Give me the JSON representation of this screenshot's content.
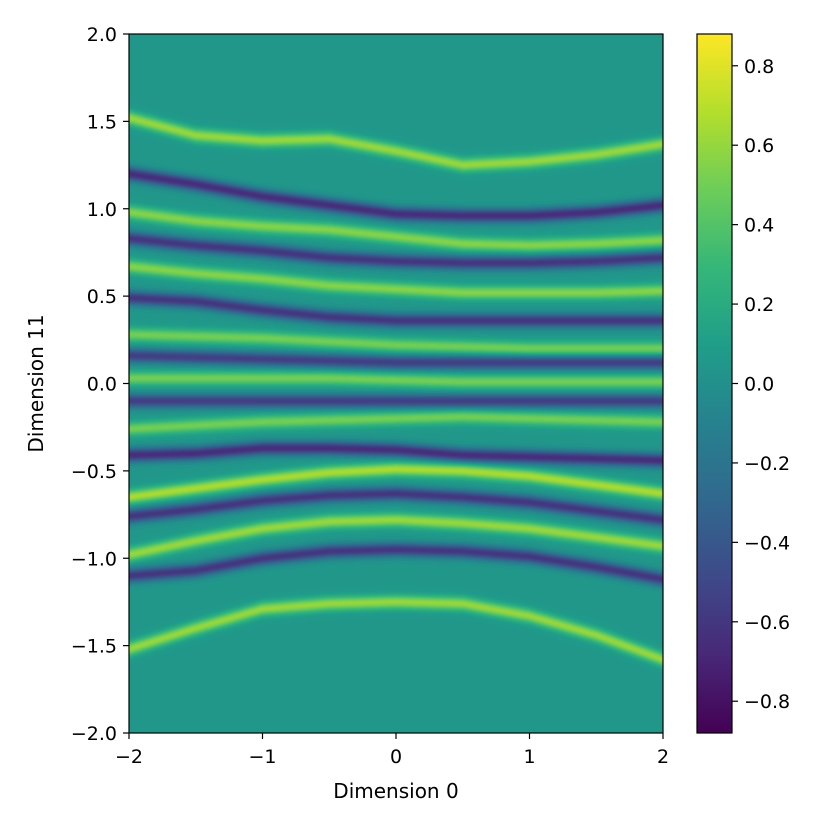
{
  "chart_data": {
    "type": "heatmap",
    "title": "",
    "xlabel": "Dimension 0",
    "ylabel": "Dimension 11",
    "xlim": [
      -2,
      2
    ],
    "ylim": [
      -2,
      2
    ],
    "xticks": [
      -2,
      -1,
      0,
      1,
      2
    ],
    "yticks": [
      -2.0,
      -1.5,
      -1.0,
      -0.5,
      0.0,
      0.5,
      1.0,
      1.5,
      2.0
    ],
    "xtick_labels": [
      "−2",
      "−1",
      "0",
      "1",
      "2"
    ],
    "ytick_labels": [
      "−2.0",
      "−1.5",
      "−1.0",
      "−0.5",
      "0.0",
      "0.5",
      "1.0",
      "1.5",
      "2.0"
    ],
    "colormap": "viridis",
    "background_value": 0.05,
    "colorbar": {
      "vmin": -0.88,
      "vmax": 0.88,
      "ticks": [
        -0.8,
        -0.6,
        -0.4,
        -0.2,
        0.0,
        0.2,
        0.4,
        0.6,
        0.8
      ],
      "tick_labels": [
        "−0.8",
        "−0.6",
        "−0.4",
        "−0.2",
        "0.0",
        "0.2",
        "0.4",
        "0.6",
        "0.8"
      ]
    },
    "bands": [
      {
        "sign": "positive",
        "amplitude": 0.55,
        "center_y": [
          [
            -2,
            1.52
          ],
          [
            -1.5,
            1.42
          ],
          [
            -1,
            1.39
          ],
          [
            -0.5,
            1.4
          ],
          [
            0,
            1.33
          ],
          [
            0.5,
            1.25
          ],
          [
            1,
            1.27
          ],
          [
            1.5,
            1.31
          ],
          [
            2,
            1.37
          ]
        ]
      },
      {
        "sign": "negative",
        "amplitude": 0.7,
        "center_y": [
          [
            -2,
            1.2
          ],
          [
            -1.5,
            1.14
          ],
          [
            -1,
            1.07
          ],
          [
            -0.5,
            1.02
          ],
          [
            0,
            0.97
          ],
          [
            0.5,
            0.96
          ],
          [
            1,
            0.96
          ],
          [
            1.5,
            0.98
          ],
          [
            2,
            1.02
          ]
        ]
      },
      {
        "sign": "positive",
        "amplitude": 0.5,
        "center_y": [
          [
            -2,
            0.98
          ],
          [
            -1.5,
            0.93
          ],
          [
            -1,
            0.9
          ],
          [
            -0.5,
            0.88
          ],
          [
            0,
            0.84
          ],
          [
            0.5,
            0.8
          ],
          [
            1,
            0.79
          ],
          [
            1.5,
            0.8
          ],
          [
            2,
            0.82
          ]
        ]
      },
      {
        "sign": "negative",
        "amplitude": 0.65,
        "center_y": [
          [
            -2,
            0.83
          ],
          [
            -1.5,
            0.79
          ],
          [
            -1,
            0.76
          ],
          [
            -0.5,
            0.72
          ],
          [
            0,
            0.7
          ],
          [
            0.5,
            0.69
          ],
          [
            1,
            0.69
          ],
          [
            1.5,
            0.7
          ],
          [
            2,
            0.72
          ]
        ]
      },
      {
        "sign": "positive",
        "amplitude": 0.5,
        "center_y": [
          [
            -2,
            0.67
          ],
          [
            -1.5,
            0.63
          ],
          [
            -1,
            0.6
          ],
          [
            -0.5,
            0.56
          ],
          [
            0,
            0.54
          ],
          [
            0.5,
            0.52
          ],
          [
            1,
            0.52
          ],
          [
            1.5,
            0.52
          ],
          [
            2,
            0.53
          ]
        ]
      },
      {
        "sign": "negative",
        "amplitude": 0.65,
        "center_y": [
          [
            -2,
            0.49
          ],
          [
            -1.5,
            0.47
          ],
          [
            -1,
            0.42
          ],
          [
            -0.5,
            0.38
          ],
          [
            0,
            0.36
          ],
          [
            0.5,
            0.36
          ],
          [
            1,
            0.36
          ],
          [
            1.5,
            0.36
          ],
          [
            2,
            0.36
          ]
        ]
      },
      {
        "sign": "positive",
        "amplitude": 0.45,
        "center_y": [
          [
            -2,
            0.28
          ],
          [
            -1.5,
            0.27
          ],
          [
            -1,
            0.26
          ],
          [
            -0.5,
            0.24
          ],
          [
            0,
            0.22
          ],
          [
            0.5,
            0.21
          ],
          [
            1,
            0.2
          ],
          [
            1.5,
            0.2
          ],
          [
            2,
            0.2
          ]
        ]
      },
      {
        "sign": "negative",
        "amplitude": 0.6,
        "center_y": [
          [
            -2,
            0.16
          ],
          [
            -1.5,
            0.15
          ],
          [
            -1,
            0.14
          ],
          [
            -0.5,
            0.13
          ],
          [
            0,
            0.12
          ],
          [
            0.5,
            0.12
          ],
          [
            1,
            0.12
          ],
          [
            1.5,
            0.12
          ],
          [
            2,
            0.12
          ]
        ]
      },
      {
        "sign": "positive",
        "amplitude": 0.45,
        "center_y": [
          [
            -2,
            0.03
          ],
          [
            -1.5,
            0.03
          ],
          [
            -1,
            0.03
          ],
          [
            -0.5,
            0.03
          ],
          [
            0,
            0.02
          ],
          [
            0.5,
            0.01
          ],
          [
            1,
            0.01
          ],
          [
            1.5,
            0.01
          ],
          [
            2,
            0.01
          ]
        ]
      },
      {
        "sign": "negative",
        "amplitude": 0.6,
        "center_y": [
          [
            -2,
            -0.1
          ],
          [
            -1.5,
            -0.1
          ],
          [
            -1,
            -0.1
          ],
          [
            -0.5,
            -0.1
          ],
          [
            0,
            -0.1
          ],
          [
            0.5,
            -0.1
          ],
          [
            1,
            -0.1
          ],
          [
            1.5,
            -0.1
          ],
          [
            2,
            -0.1
          ]
        ]
      },
      {
        "sign": "positive",
        "amplitude": 0.45,
        "center_y": [
          [
            -2,
            -0.26
          ],
          [
            -1.5,
            -0.24
          ],
          [
            -1,
            -0.22
          ],
          [
            -0.5,
            -0.21
          ],
          [
            0,
            -0.2
          ],
          [
            0.5,
            -0.19
          ],
          [
            1,
            -0.2
          ],
          [
            1.5,
            -0.21
          ],
          [
            2,
            -0.22
          ]
        ]
      },
      {
        "sign": "negative",
        "amplitude": 0.7,
        "center_y": [
          [
            -2,
            -0.41
          ],
          [
            -1.5,
            -0.4
          ],
          [
            -1,
            -0.37
          ],
          [
            -0.5,
            -0.37
          ],
          [
            0,
            -0.38
          ],
          [
            0.5,
            -0.41
          ],
          [
            1,
            -0.42
          ],
          [
            1.5,
            -0.43
          ],
          [
            2,
            -0.44
          ]
        ]
      },
      {
        "sign": "positive",
        "amplitude": 0.6,
        "center_y": [
          [
            -2,
            -0.65
          ],
          [
            -1.5,
            -0.6
          ],
          [
            -1,
            -0.55
          ],
          [
            -0.5,
            -0.51
          ],
          [
            0,
            -0.49
          ],
          [
            0.5,
            -0.5
          ],
          [
            1,
            -0.53
          ],
          [
            1.5,
            -0.58
          ],
          [
            2,
            -0.63
          ]
        ]
      },
      {
        "sign": "negative",
        "amplitude": 0.65,
        "center_y": [
          [
            -2,
            -0.76
          ],
          [
            -1.5,
            -0.72
          ],
          [
            -1,
            -0.67
          ],
          [
            -0.5,
            -0.64
          ],
          [
            0,
            -0.63
          ],
          [
            0.5,
            -0.65
          ],
          [
            1,
            -0.68
          ],
          [
            1.5,
            -0.73
          ],
          [
            2,
            -0.78
          ]
        ]
      },
      {
        "sign": "positive",
        "amplitude": 0.55,
        "center_y": [
          [
            -2,
            -0.98
          ],
          [
            -1.5,
            -0.9
          ],
          [
            -1,
            -0.83
          ],
          [
            -0.5,
            -0.79
          ],
          [
            0,
            -0.78
          ],
          [
            0.5,
            -0.8
          ],
          [
            1,
            -0.83
          ],
          [
            1.5,
            -0.88
          ],
          [
            2,
            -0.93
          ]
        ]
      },
      {
        "sign": "negative",
        "amplitude": 0.65,
        "center_y": [
          [
            -2,
            -1.1
          ],
          [
            -1.5,
            -1.07
          ],
          [
            -1,
            -1.0
          ],
          [
            -0.5,
            -0.96
          ],
          [
            0,
            -0.95
          ],
          [
            0.5,
            -0.96
          ],
          [
            1,
            -0.99
          ],
          [
            1.5,
            -1.05
          ],
          [
            2,
            -1.12
          ]
        ]
      },
      {
        "sign": "positive",
        "amplitude": 0.55,
        "center_y": [
          [
            -2,
            -1.52
          ],
          [
            -1.5,
            -1.4
          ],
          [
            -1,
            -1.29
          ],
          [
            -0.5,
            -1.26
          ],
          [
            0,
            -1.25
          ],
          [
            0.5,
            -1.26
          ],
          [
            1,
            -1.33
          ],
          [
            1.5,
            -1.44
          ],
          [
            2,
            -1.58
          ]
        ]
      }
    ]
  }
}
